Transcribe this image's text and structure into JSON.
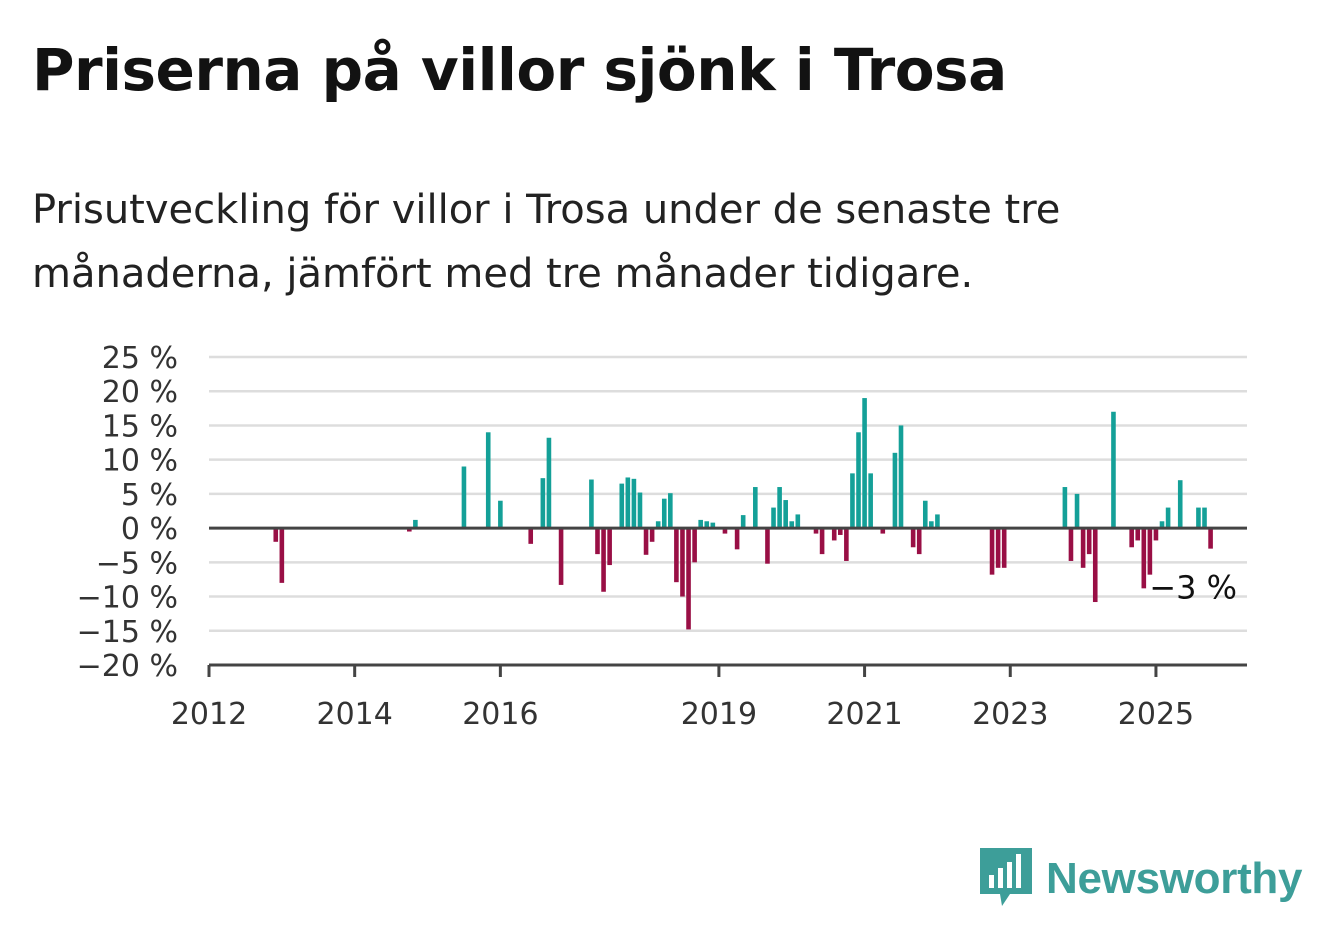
{
  "title": "Priserna på villor sjönk i Trosa",
  "subtitle": "Prisutveckling för villor i Trosa under de senaste tre månaderna, jämfört med tre månader tidigare.",
  "logo_text": "Newsworthy",
  "chart_data": {
    "type": "bar",
    "y_ticks": [
      {
        "value": 25,
        "label": "25 %"
      },
      {
        "value": 20,
        "label": "20 %"
      },
      {
        "value": 15,
        "label": "15 %"
      },
      {
        "value": 10,
        "label": "10 %"
      },
      {
        "value": 5,
        "label": "5 %"
      },
      {
        "value": 0,
        "label": "0 %"
      },
      {
        "value": -5,
        "label": "−5 %"
      },
      {
        "value": -10,
        "label": "−10 %"
      },
      {
        "value": -15,
        "label": "−15 %"
      },
      {
        "value": -20,
        "label": "−20 %"
      }
    ],
    "x_ticks": [
      "2012",
      "2014",
      "2016",
      "2019",
      "2021",
      "2023",
      "2025"
    ],
    "ylim": [
      -20,
      25
    ],
    "grid": true,
    "positive_color": "#14a098",
    "negative_color": "#990f45",
    "annotation": {
      "label": "−3 %",
      "value": -3
    },
    "series": [
      {
        "date": "2012-12",
        "value": -2
      },
      {
        "date": "2013-01",
        "value": -8
      },
      {
        "date": "2014-10",
        "value": -0.5
      },
      {
        "date": "2014-11",
        "value": 1.2
      },
      {
        "date": "2015-07",
        "value": 9
      },
      {
        "date": "2015-11",
        "value": 14
      },
      {
        "date": "2016-01",
        "value": 4
      },
      {
        "date": "2016-06",
        "value": -2.3
      },
      {
        "date": "2016-08",
        "value": 7.3
      },
      {
        "date": "2016-09",
        "value": 13.2
      },
      {
        "date": "2016-11",
        "value": -8.3
      },
      {
        "date": "2017-04",
        "value": 7.1
      },
      {
        "date": "2017-05",
        "value": -3.8
      },
      {
        "date": "2017-06",
        "value": -9.3
      },
      {
        "date": "2017-07",
        "value": -5.4
      },
      {
        "date": "2017-09",
        "value": 6.5
      },
      {
        "date": "2017-10",
        "value": 7.4
      },
      {
        "date": "2017-11",
        "value": 7.2
      },
      {
        "date": "2017-12",
        "value": 5.2
      },
      {
        "date": "2018-01",
        "value": -3.9
      },
      {
        "date": "2018-02",
        "value": -2
      },
      {
        "date": "2018-03",
        "value": 1
      },
      {
        "date": "2018-04",
        "value": 4.3
      },
      {
        "date": "2018-05",
        "value": 5.1
      },
      {
        "date": "2018-06",
        "value": -7.9
      },
      {
        "date": "2018-07",
        "value": -10
      },
      {
        "date": "2018-08",
        "value": -14.8
      },
      {
        "date": "2018-09",
        "value": -5
      },
      {
        "date": "2018-10",
        "value": 1.2
      },
      {
        "date": "2018-11",
        "value": 1
      },
      {
        "date": "2018-12",
        "value": 0.8
      },
      {
        "date": "2019-02",
        "value": -0.8
      },
      {
        "date": "2019-04",
        "value": -3.1
      },
      {
        "date": "2019-05",
        "value": 1.9
      },
      {
        "date": "2019-07",
        "value": 6
      },
      {
        "date": "2019-09",
        "value": -5.2
      },
      {
        "date": "2019-10",
        "value": 3
      },
      {
        "date": "2019-11",
        "value": 6
      },
      {
        "date": "2019-12",
        "value": 4.1
      },
      {
        "date": "2020-01",
        "value": 1
      },
      {
        "date": "2020-02",
        "value": 2
      },
      {
        "date": "2020-05",
        "value": -0.8
      },
      {
        "date": "2020-06",
        "value": -3.8
      },
      {
        "date": "2020-08",
        "value": -1.8
      },
      {
        "date": "2020-09",
        "value": -1
      },
      {
        "date": "2020-10",
        "value": -4.8
      },
      {
        "date": "2020-11",
        "value": 8
      },
      {
        "date": "2020-12",
        "value": 14
      },
      {
        "date": "2021-01",
        "value": 19
      },
      {
        "date": "2021-02",
        "value": 8
      },
      {
        "date": "2021-04",
        "value": -0.8
      },
      {
        "date": "2021-06",
        "value": 11
      },
      {
        "date": "2021-07",
        "value": 15
      },
      {
        "date": "2021-09",
        "value": -2.8
      },
      {
        "date": "2021-10",
        "value": -3.8
      },
      {
        "date": "2021-11",
        "value": 4
      },
      {
        "date": "2021-12",
        "value": 1
      },
      {
        "date": "2022-01",
        "value": 2
      },
      {
        "date": "2022-10",
        "value": -6.8
      },
      {
        "date": "2022-11",
        "value": -5.8
      },
      {
        "date": "2022-12",
        "value": -5.8
      },
      {
        "date": "2023-10",
        "value": 6
      },
      {
        "date": "2023-11",
        "value": -4.8
      },
      {
        "date": "2023-12",
        "value": 5
      },
      {
        "date": "2024-01",
        "value": -5.8
      },
      {
        "date": "2024-02",
        "value": -3.8
      },
      {
        "date": "2024-03",
        "value": -10.8
      },
      {
        "date": "2024-06",
        "value": 17
      },
      {
        "date": "2024-09",
        "value": -2.8
      },
      {
        "date": "2024-10",
        "value": -1.8
      },
      {
        "date": "2024-11",
        "value": -8.8
      },
      {
        "date": "2024-12",
        "value": -6.8
      },
      {
        "date": "2025-01",
        "value": -1.8
      },
      {
        "date": "2025-02",
        "value": 1
      },
      {
        "date": "2025-03",
        "value": 3
      },
      {
        "date": "2025-05",
        "value": 7
      },
      {
        "date": "2025-08",
        "value": 3
      },
      {
        "date": "2025-09",
        "value": 3
      },
      {
        "date": "2025-10",
        "value": -3
      }
    ]
  }
}
